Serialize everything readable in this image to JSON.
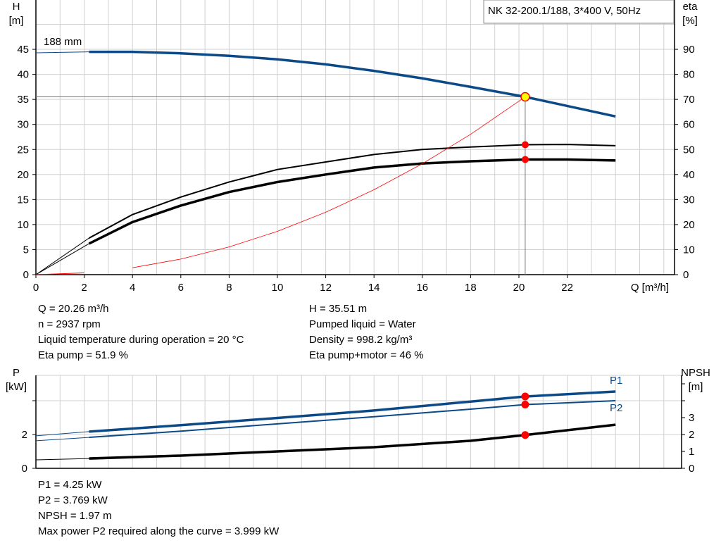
{
  "chart_data": [
    {
      "type": "line",
      "title": "NK 32-200.1/188, 3*400 V, 50Hz",
      "xlabel": "Q [m³/h]",
      "ylabel": "H\n[m]",
      "y2label": "eta\n[%]",
      "xlim": [
        0,
        26
      ],
      "ylim": [
        0,
        50
      ],
      "y2lim": [
        0,
        100
      ],
      "xticks": [
        0,
        2,
        4,
        6,
        8,
        10,
        12,
        14,
        16,
        18,
        20,
        22
      ],
      "yticks": [
        0,
        5,
        10,
        15,
        20,
        25,
        30,
        35,
        40,
        45
      ],
      "y2ticks": [
        0,
        10,
        20,
        30,
        40,
        50,
        60,
        70,
        80,
        90
      ],
      "grid": true,
      "curve_label": "188 mm",
      "series": [
        {
          "key": "H",
          "axis": "left",
          "color": "#0b4a87",
          "x": [
            0,
            2.2,
            4,
            6,
            8,
            10,
            12,
            14,
            16,
            18,
            20.26,
            24
          ],
          "y": [
            44.3,
            44.5,
            44.5,
            44.2,
            43.7,
            43.0,
            42.0,
            40.7,
            39.2,
            37.5,
            35.51,
            31.6
          ]
        },
        {
          "key": "eta_pump",
          "axis": "right",
          "color": "#000000",
          "x": [
            0,
            2.2,
            4,
            6,
            8,
            10,
            12,
            14,
            16,
            18,
            20.26,
            22,
            24
          ],
          "y": [
            0,
            14.6,
            24,
            31,
            37,
            42,
            45,
            48,
            50,
            51,
            51.9,
            52,
            51.5
          ]
        },
        {
          "key": "eta_pump_motor",
          "axis": "right",
          "color": "#000000",
          "x": [
            0,
            2.2,
            4,
            6,
            8,
            10,
            12,
            14,
            16,
            18,
            20.26,
            22,
            24
          ],
          "y": [
            0,
            12.4,
            21,
            27.6,
            33,
            37,
            40,
            42.8,
            44.4,
            45.3,
            46,
            46,
            45.6
          ]
        },
        {
          "key": "system",
          "axis": "left",
          "color": "#ff0000",
          "x": [
            0,
            2,
            4,
            6,
            8,
            10,
            12,
            14,
            16,
            18,
            20.26
          ],
          "y": [
            0,
            0.35,
            1.38,
            3.11,
            5.54,
            8.65,
            12.46,
            16.96,
            22.15,
            28.03,
            35.51
          ]
        }
      ],
      "operating_point": {
        "Q": 20.26,
        "H": 35.51,
        "eta_pump": 51.9,
        "eta_pump_motor": 46
      }
    },
    {
      "type": "line",
      "ylabel": "P\n[kW]",
      "y2label": "NPSH\n[m]",
      "xlim": [
        0,
        26
      ],
      "ylim": [
        0,
        5
      ],
      "y2lim": [
        0,
        5
      ],
      "yticks": [
        0,
        2
      ],
      "y2ticks": [
        0,
        1,
        2,
        3
      ],
      "grid": true,
      "series": [
        {
          "name": "P1",
          "axis": "left",
          "color": "#0b4a87",
          "x": [
            0,
            2.2,
            6,
            10,
            14,
            18,
            20.26,
            24
          ],
          "y": [
            1.92,
            2.17,
            2.55,
            2.98,
            3.42,
            3.95,
            4.25,
            4.54
          ]
        },
        {
          "name": "P2",
          "axis": "left",
          "color": "#0b4a87",
          "x": [
            0,
            2.2,
            6,
            10,
            14,
            18,
            20.26,
            24
          ],
          "y": [
            1.63,
            1.83,
            2.2,
            2.63,
            3.05,
            3.5,
            3.769,
            4.0
          ]
        },
        {
          "key": "NPSH",
          "axis": "right",
          "color": "#000000",
          "x": [
            0,
            2.2,
            6,
            10,
            14,
            18,
            20.26,
            24
          ],
          "y": [
            0.5,
            0.58,
            0.75,
            1.0,
            1.25,
            1.63,
            1.97,
            2.58
          ]
        }
      ],
      "operating_point": {
        "Q": 20.26,
        "P1": 4.25,
        "P2": 3.769,
        "NPSH": 1.97
      }
    }
  ],
  "info_top_left": [
    "Q = 20.26 m³/h",
    "n = 2937 rpm",
    "Liquid temperature during operation = 20 °C",
    "Eta pump = 51.9 %"
  ],
  "info_top_right": [
    "H = 35.51 m",
    "Pumped liquid = Water",
    "Density = 998.2 kg/m³",
    "Eta pump+motor = 46 %"
  ],
  "info_bottom": [
    "P1 = 4.25 kW",
    "P2 = 3.769 kW",
    "NPSH = 1.97 m",
    "Max power P2 required along the curve = 3.999 kW"
  ]
}
